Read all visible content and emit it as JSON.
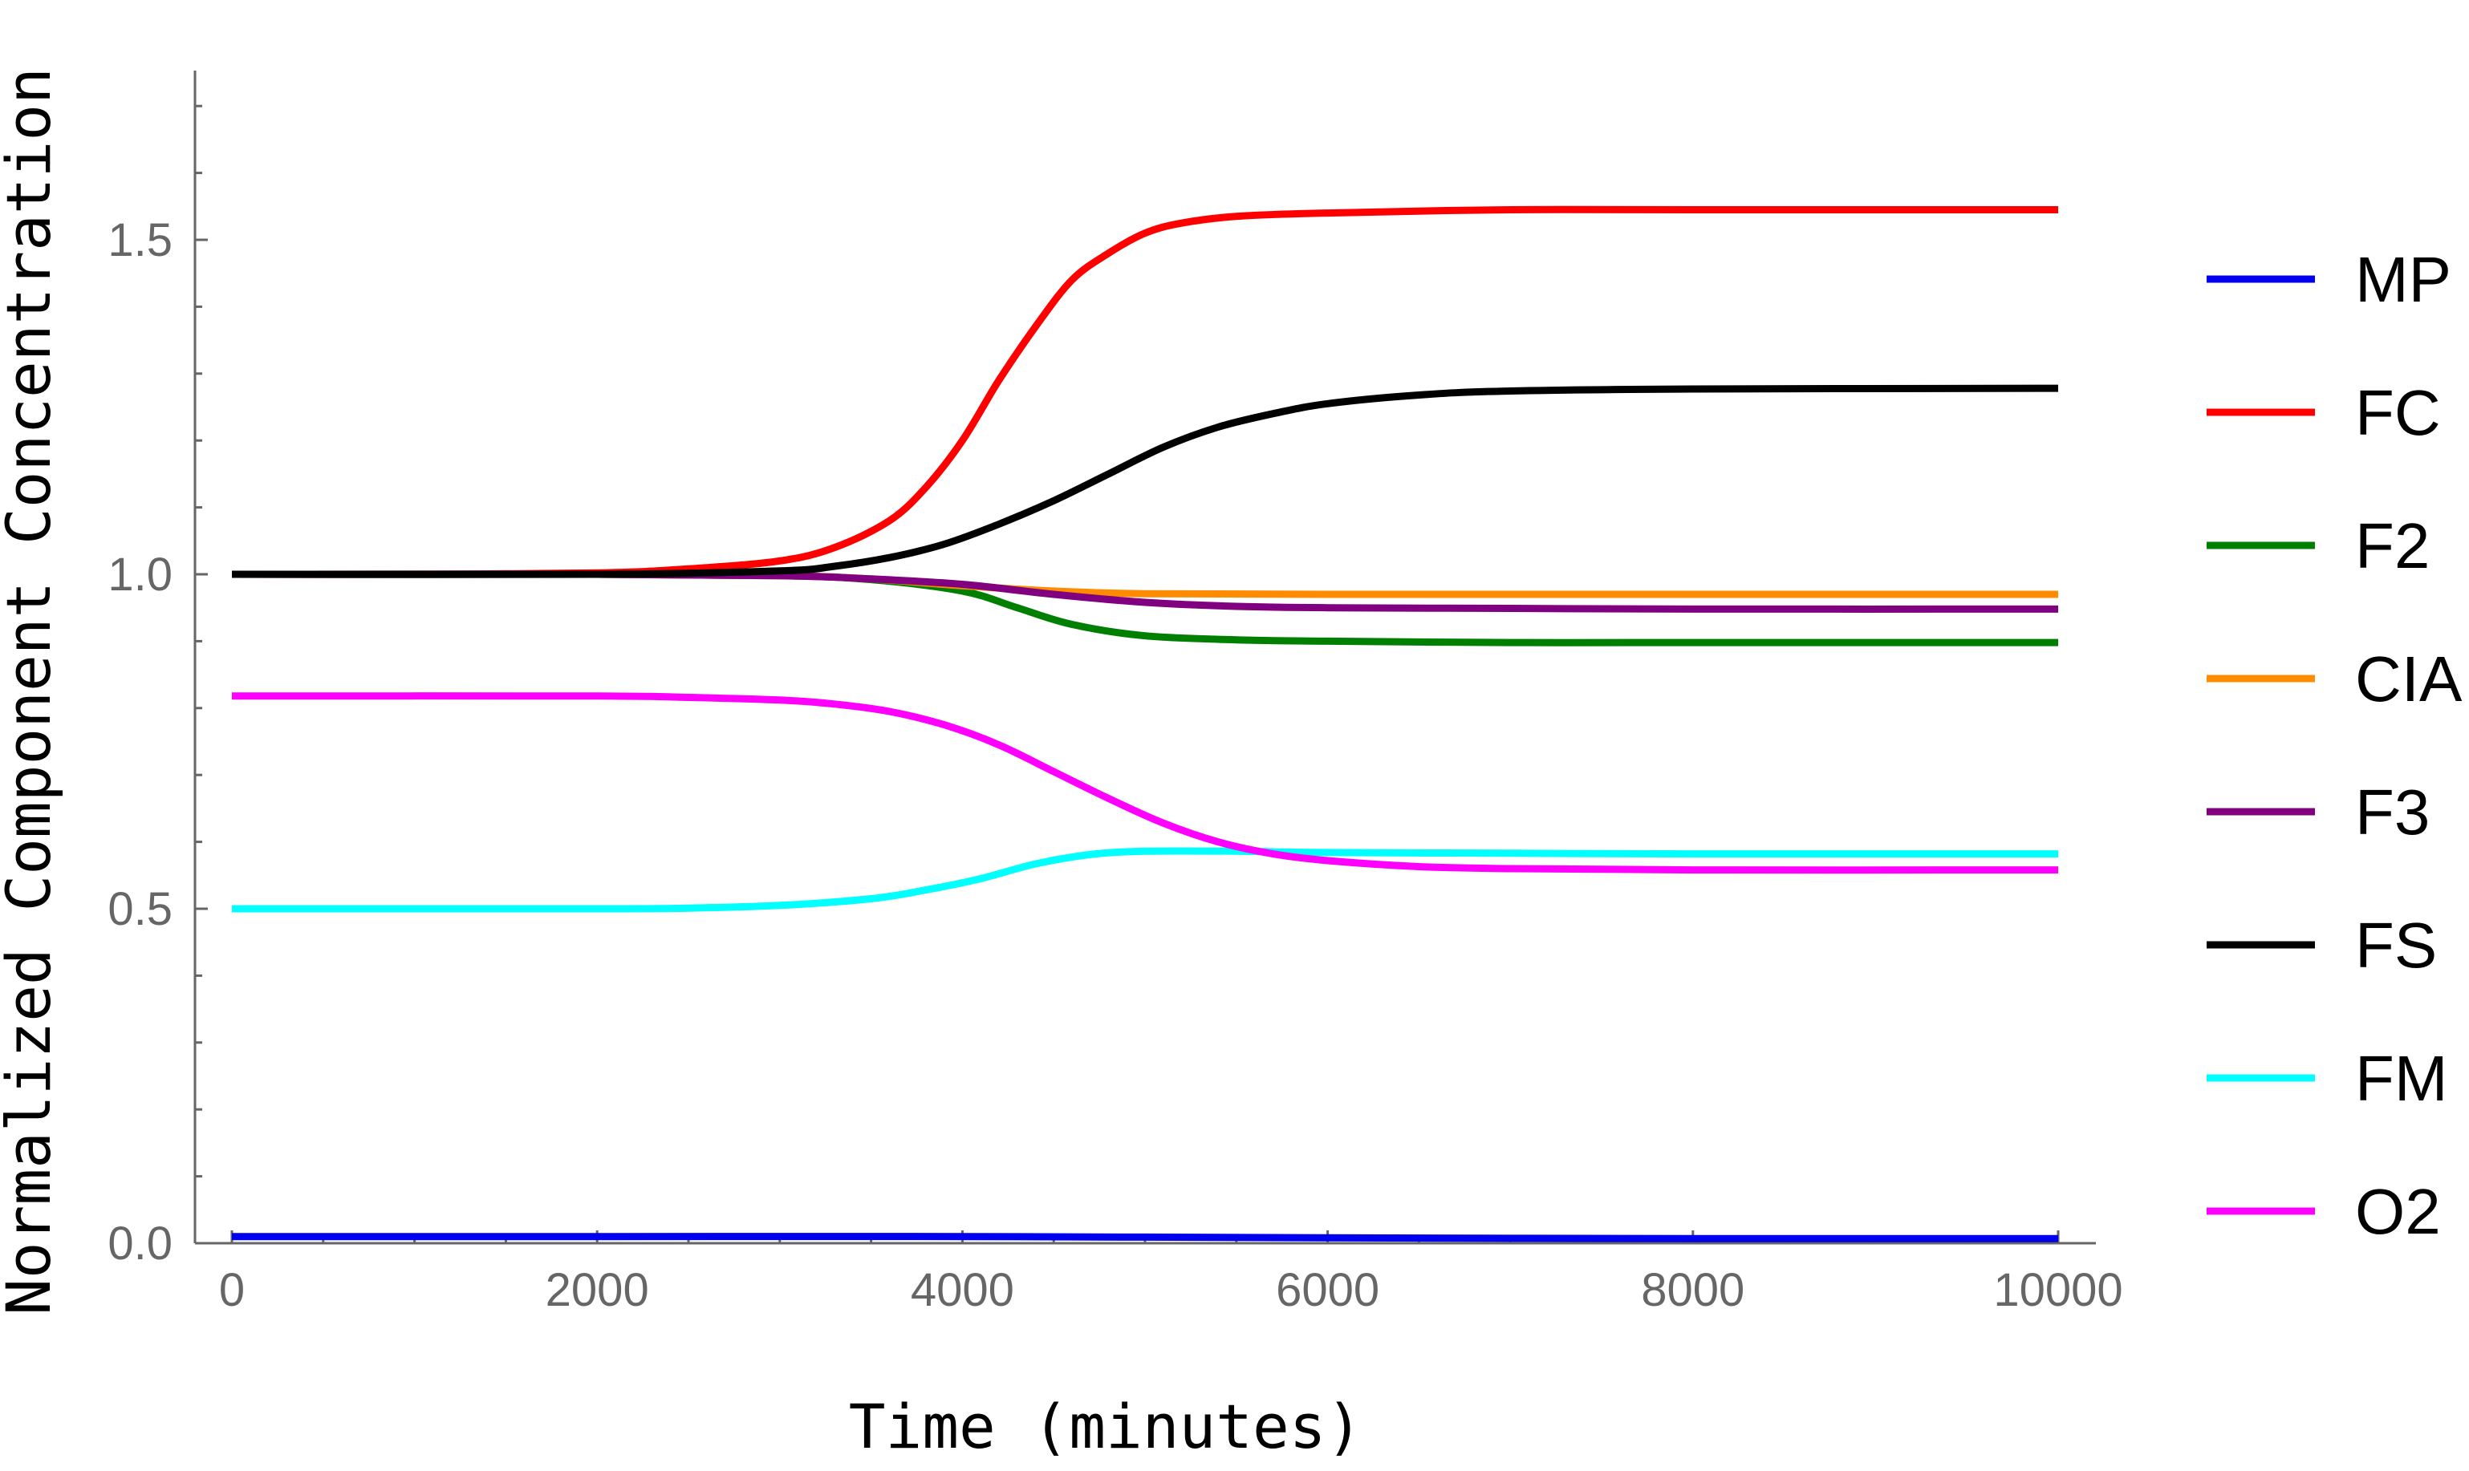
{
  "chart_data": {
    "type": "line",
    "xlabel": "Time (minutes)",
    "ylabel": "Normalized Component Concentration",
    "xlim": [
      -100,
      10200
    ],
    "ylim": [
      0,
      1.75
    ],
    "x_ticks": [
      0,
      2000,
      4000,
      6000,
      8000,
      10000
    ],
    "x_tick_labels": [
      "0",
      "2000",
      "4000",
      "6000",
      "8000",
      "10000"
    ],
    "x_minor_step": 500,
    "y_ticks": [
      0.0,
      0.5,
      1.0,
      1.5
    ],
    "y_tick_labels": [
      "0.0",
      "0.5",
      "1.0",
      "1.5"
    ],
    "y_minor_step": 0.1,
    "grid": false,
    "legend_position": "right",
    "series": [
      {
        "name": "MP",
        "color": "#0000ee",
        "x": [
          0,
          2000,
          4000,
          6000,
          8000,
          10000
        ],
        "y": [
          0.01,
          0.01,
          0.01,
          0.008,
          0.007,
          0.007
        ]
      },
      {
        "name": "FC",
        "color": "#ff0000",
        "x": [
          0,
          1000,
          2000,
          2500,
          3000,
          3300,
          3600,
          3800,
          4000,
          4200,
          4400,
          4600,
          4800,
          5000,
          5200,
          5500,
          6000,
          7000,
          8000,
          10000
        ],
        "y": [
          1.0,
          1.0,
          1.002,
          1.008,
          1.02,
          1.04,
          1.08,
          1.13,
          1.2,
          1.29,
          1.37,
          1.44,
          1.48,
          1.51,
          1.525,
          1.535,
          1.54,
          1.545,
          1.545,
          1.545
        ]
      },
      {
        "name": "F2",
        "color": "#007f00",
        "x": [
          0,
          2000,
          3000,
          3500,
          4000,
          4300,
          4600,
          5000,
          5500,
          6000,
          7000,
          8000,
          10000
        ],
        "y": [
          1.0,
          1.0,
          0.998,
          0.992,
          0.975,
          0.95,
          0.925,
          0.908,
          0.902,
          0.9,
          0.898,
          0.898,
          0.898
        ]
      },
      {
        "name": "CIA",
        "color": "#ff8c00",
        "x": [
          0,
          2000,
          3000,
          3500,
          4000,
          4500,
          5000,
          6000,
          8000,
          10000
        ],
        "y": [
          1.0,
          1.0,
          0.998,
          0.993,
          0.983,
          0.975,
          0.971,
          0.97,
          0.97,
          0.97
        ]
      },
      {
        "name": "F3",
        "color": "#800080",
        "x": [
          0,
          2000,
          3000,
          3500,
          4000,
          4500,
          5000,
          5500,
          6000,
          7000,
          8000,
          10000
        ],
        "y": [
          1.0,
          1.0,
          0.998,
          0.993,
          0.985,
          0.97,
          0.958,
          0.952,
          0.95,
          0.949,
          0.948,
          0.948
        ]
      },
      {
        "name": "FS",
        "color": "#000000",
        "x": [
          0,
          2000,
          3000,
          3300,
          3600,
          3900,
          4200,
          4500,
          4800,
          5100,
          5400,
          5700,
          6000,
          6500,
          7000,
          8000,
          10000
        ],
        "y": [
          1.0,
          1.0,
          1.005,
          1.012,
          1.025,
          1.045,
          1.075,
          1.11,
          1.15,
          1.19,
          1.22,
          1.24,
          1.255,
          1.268,
          1.274,
          1.277,
          1.278
        ]
      },
      {
        "name": "FM",
        "color": "#00ffff",
        "x": [
          0,
          2000,
          2500,
          3000,
          3500,
          3800,
          4100,
          4400,
          4700,
          5000,
          5500,
          6000,
          7000,
          8000,
          10000
        ],
        "y": [
          0.5,
          0.5,
          0.501,
          0.505,
          0.515,
          0.528,
          0.545,
          0.567,
          0.581,
          0.586,
          0.586,
          0.584,
          0.583,
          0.582,
          0.582
        ]
      },
      {
        "name": "O2",
        "color": "#ff00ff",
        "x": [
          0,
          2000,
          2500,
          3000,
          3300,
          3600,
          3900,
          4200,
          4500,
          4800,
          5100,
          5400,
          5700,
          6000,
          6500,
          7000,
          8000,
          10000
        ],
        "y": [
          0.818,
          0.818,
          0.816,
          0.812,
          0.806,
          0.795,
          0.775,
          0.745,
          0.705,
          0.665,
          0.628,
          0.6,
          0.582,
          0.572,
          0.563,
          0.56,
          0.558,
          0.558
        ]
      }
    ]
  }
}
